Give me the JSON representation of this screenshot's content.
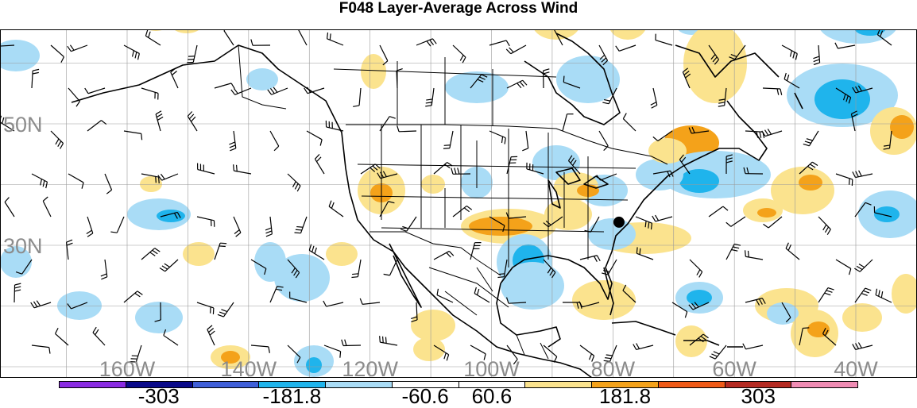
{
  "title": "F048 Layer-Average Across Wind",
  "map": {
    "lat_labels": [
      {
        "text": "50N",
        "lat": 50
      },
      {
        "text": "30N",
        "lat": 30
      }
    ],
    "lon_labels": [
      {
        "text": "160W",
        "lon": -160
      },
      {
        "text": "140W",
        "lon": -140
      },
      {
        "text": "120W",
        "lon": -120
      },
      {
        "text": "100W",
        "lon": -100
      },
      {
        "text": "80W",
        "lon": -80
      },
      {
        "text": "60W",
        "lon": -60
      },
      {
        "text": "40W",
        "lon": -40
      }
    ],
    "marker": {
      "name": "point-marker",
      "lon": -79,
      "lat": 33.8
    }
  },
  "colorbar": {
    "colors": [
      "#8a2be2",
      "#0a0a8a",
      "#3f5fd8",
      "#1fb4ec",
      "#a9dcf6",
      "#ffffff",
      "#ffffff",
      "#fbe38e",
      "#f4a21a",
      "#f05a17",
      "#b52a22",
      "#f08cb4"
    ],
    "labels": [
      "-303",
      "-181.8",
      "-60.6",
      "60.6",
      "181.8",
      "303"
    ]
  },
  "colors": {
    "light_blue": "#a9dcf6",
    "mid_blue": "#1fb4ec",
    "light_yellow": "#fbe38e",
    "orange": "#f4a21a"
  }
}
